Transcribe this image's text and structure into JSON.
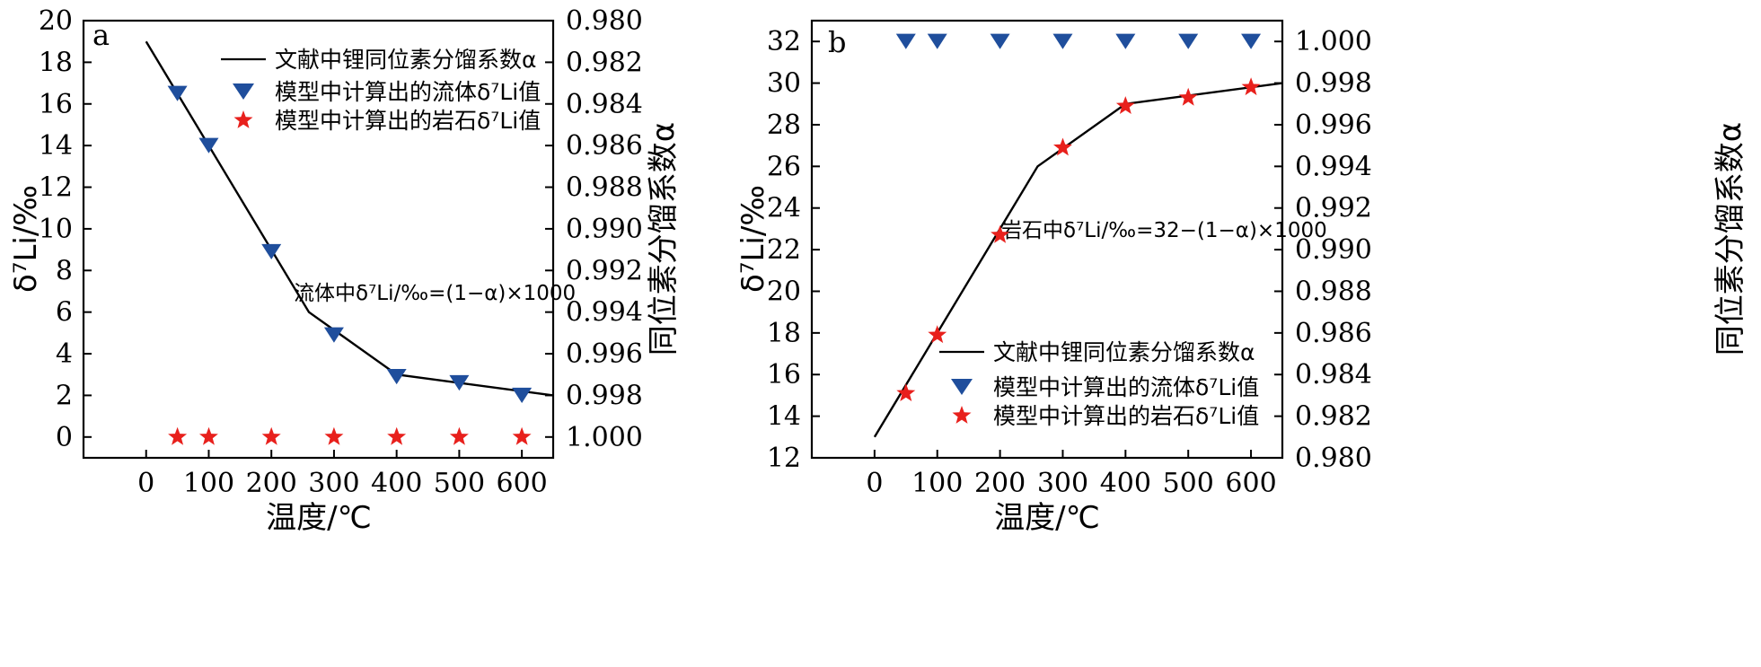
{
  "chart_data": [
    {
      "type": "line",
      "panel_label": "a",
      "xlabel": "温度/℃",
      "ylabel": "δ⁷Li/‰",
      "y2label": "同位素分馏系数α",
      "xlim": [
        -100,
        650
      ],
      "ylim": [
        -1,
        20
      ],
      "y2lim": [
        1.001,
        0.98
      ],
      "xticks": [
        "0",
        "100",
        "200",
        "300",
        "400",
        "500",
        "600"
      ],
      "yticks": [
        "0",
        "2",
        "4",
        "6",
        "8",
        "10",
        "12",
        "14",
        "16",
        "18",
        "20"
      ],
      "y2ticks": [
        "1.000",
        "0.998",
        "0.996",
        "0.994",
        "0.992",
        "0.990",
        "0.988",
        "0.986",
        "0.984",
        "0.982",
        "0.980"
      ],
      "annotation": "流体中δ⁷Li/‰=(1−α)×1000",
      "legend_position": "top-right",
      "series": [
        {
          "name": "文献中锂同位素分馏系数α",
          "kind": "line",
          "color": "#000000",
          "x": [
            0,
            260,
            400,
            650
          ],
          "y": [
            19.0,
            6.0,
            3.0,
            2.0
          ]
        },
        {
          "name": "模型中计算出的流体δ⁷Li值",
          "kind": "triangle",
          "color": "#1f4e9c",
          "x": [
            50,
            100,
            200,
            300,
            400,
            500,
            600
          ],
          "y": [
            16.5,
            14.0,
            8.9,
            4.9,
            2.9,
            2.6,
            2.0
          ]
        },
        {
          "name": "模型中计算出的岩石δ⁷Li值",
          "kind": "star",
          "color": "#e8201c",
          "x": [
            50,
            100,
            200,
            300,
            400,
            500,
            600
          ],
          "y": [
            0,
            0,
            0,
            0,
            0,
            0,
            0
          ]
        }
      ]
    },
    {
      "type": "line",
      "panel_label": "b",
      "xlabel": "温度/℃",
      "ylabel": "δ⁷Li/‰",
      "y2label": "同位素分馏系数α",
      "xlim": [
        -100,
        650
      ],
      "ylim": [
        12,
        33
      ],
      "y2lim": [
        0.98,
        1.001
      ],
      "xticks": [
        "0",
        "100",
        "200",
        "300",
        "400",
        "500",
        "600"
      ],
      "yticks": [
        "12",
        "14",
        "16",
        "18",
        "20",
        "22",
        "24",
        "26",
        "28",
        "30",
        "32"
      ],
      "y2ticks": [
        "0.980",
        "0.982",
        "0.984",
        "0.986",
        "0.988",
        "0.990",
        "0.992",
        "0.994",
        "0.996",
        "0.998",
        "1.000"
      ],
      "annotation": "岩石中δ⁷Li/‰=32−(1−α)×1000",
      "legend_position": "bottom-right",
      "series": [
        {
          "name": "文献中锂同位素分馏系数α",
          "kind": "line",
          "color": "#000000",
          "x": [
            0,
            260,
            400,
            650
          ],
          "y": [
            13.0,
            26.0,
            29.0,
            30.0
          ]
        },
        {
          "name": "模型中计算出的流体δ⁷Li值",
          "kind": "triangle",
          "color": "#1f4e9c",
          "x": [
            50,
            100,
            200,
            300,
            400,
            500,
            600
          ],
          "y": [
            32,
            32,
            32,
            32,
            32,
            32,
            32
          ]
        },
        {
          "name": "模型中计算出的岩石δ⁷Li值",
          "kind": "star",
          "color": "#e8201c",
          "x": [
            50,
            100,
            200,
            300,
            400,
            500,
            600
          ],
          "y": [
            15.1,
            17.9,
            22.7,
            26.9,
            28.9,
            29.3,
            29.8
          ]
        }
      ]
    }
  ]
}
